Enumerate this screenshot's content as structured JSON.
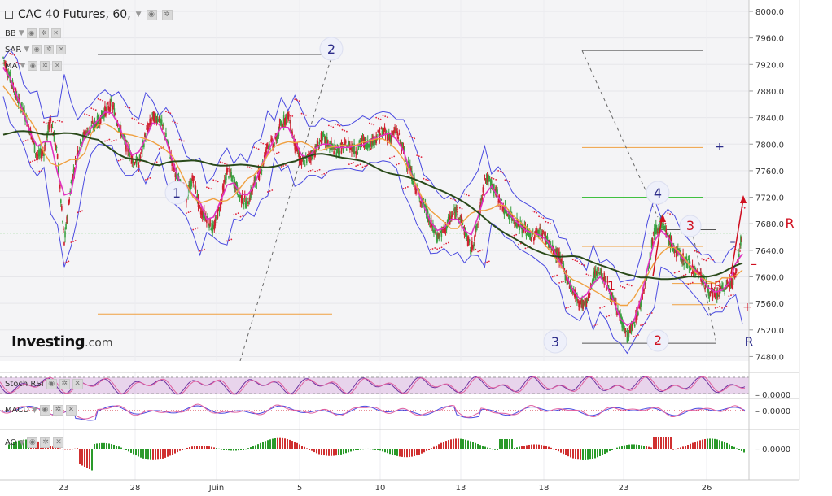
{
  "header": {
    "title": "CAC 40 Futures, 60,",
    "indicators": [
      "BB",
      "SAR",
      "MA"
    ]
  },
  "brand": {
    "name": "Investing",
    "suffix": ".com"
  },
  "colors": {
    "bb": "#4a4ae0",
    "sar": "#e0203a",
    "ma_fast": "#e030c0",
    "ma_mid": "#f0a040",
    "ma_slow": "#2a4a1a",
    "wave_blue": "#2c2c8a",
    "wave_red": "#d01020",
    "up_candle": "#3aa040",
    "down_candle": "#d02030",
    "price_line": "#20b020",
    "stoch_fill": "#d8b8e0",
    "stoch_line": "#7030a0",
    "ao_up": "#2a9a2a",
    "ao_down": "#d03030"
  },
  "chart_data": {
    "type": "line",
    "title": "CAC 40 Futures, 60,",
    "x_ticks": [
      "23",
      "28",
      "Juin",
      "5",
      "10",
      "13",
      "18",
      "23",
      "26"
    ],
    "y_ticks": [
      "8000.0",
      "7960.0",
      "7920.0",
      "7880.0",
      "7840.0",
      "7800.0",
      "7760.0",
      "7720.0",
      "7680.0",
      "7640.0",
      "7600.0",
      "7560.0",
      "7520.0",
      "7480.0"
    ],
    "ylim": [
      7455,
      8010
    ],
    "series": [
      {
        "values": [
          7930,
          7900,
          7870,
          7850,
          7820,
          7780,
          7790,
          7840,
          7780,
          7650,
          7740,
          7790,
          7815,
          7825,
          7835,
          7850,
          7860,
          7830,
          7800,
          7780,
          7770,
          7815,
          7840,
          7840,
          7810,
          7770,
          7740,
          7720,
          7750,
          7700,
          7690,
          7670,
          7710,
          7760,
          7745,
          7720,
          7710,
          7740,
          7760,
          7800,
          7800,
          7830,
          7845,
          7800,
          7770,
          7780,
          7790,
          7810,
          7800,
          7790,
          7795,
          7800,
          7790,
          7805,
          7800,
          7810,
          7820,
          7810,
          7820,
          7790,
          7760,
          7730,
          7710,
          7680,
          7660,
          7670,
          7690,
          7700,
          7670,
          7640,
          7680,
          7750,
          7740,
          7720,
          7700,
          7690,
          7680,
          7670,
          7660,
          7670,
          7660,
          7640,
          7630,
          7600,
          7580,
          7560,
          7560,
          7600,
          7610,
          7590,
          7560,
          7540,
          7510,
          7530,
          7560,
          7610,
          7670,
          7680,
          7660,
          7640,
          7630,
          7620,
          7610,
          7600,
          7580,
          7570,
          7580,
          7590,
          7600,
          7670
        ]
      }
    ],
    "hlines": [
      {
        "y": 7666,
        "label": ""
      }
    ],
    "wave_labels_blue": [
      "1",
      "2",
      "3",
      "4",
      "R"
    ],
    "wave_labels_red": [
      "1",
      "2",
      "3",
      "R"
    ],
    "panels": [
      {
        "name": "Stoch RSI",
        "tick": "0.0000"
      },
      {
        "name": "MACD",
        "tick": "0.0000"
      },
      {
        "name": "AO",
        "tick": "0.0000"
      }
    ]
  }
}
